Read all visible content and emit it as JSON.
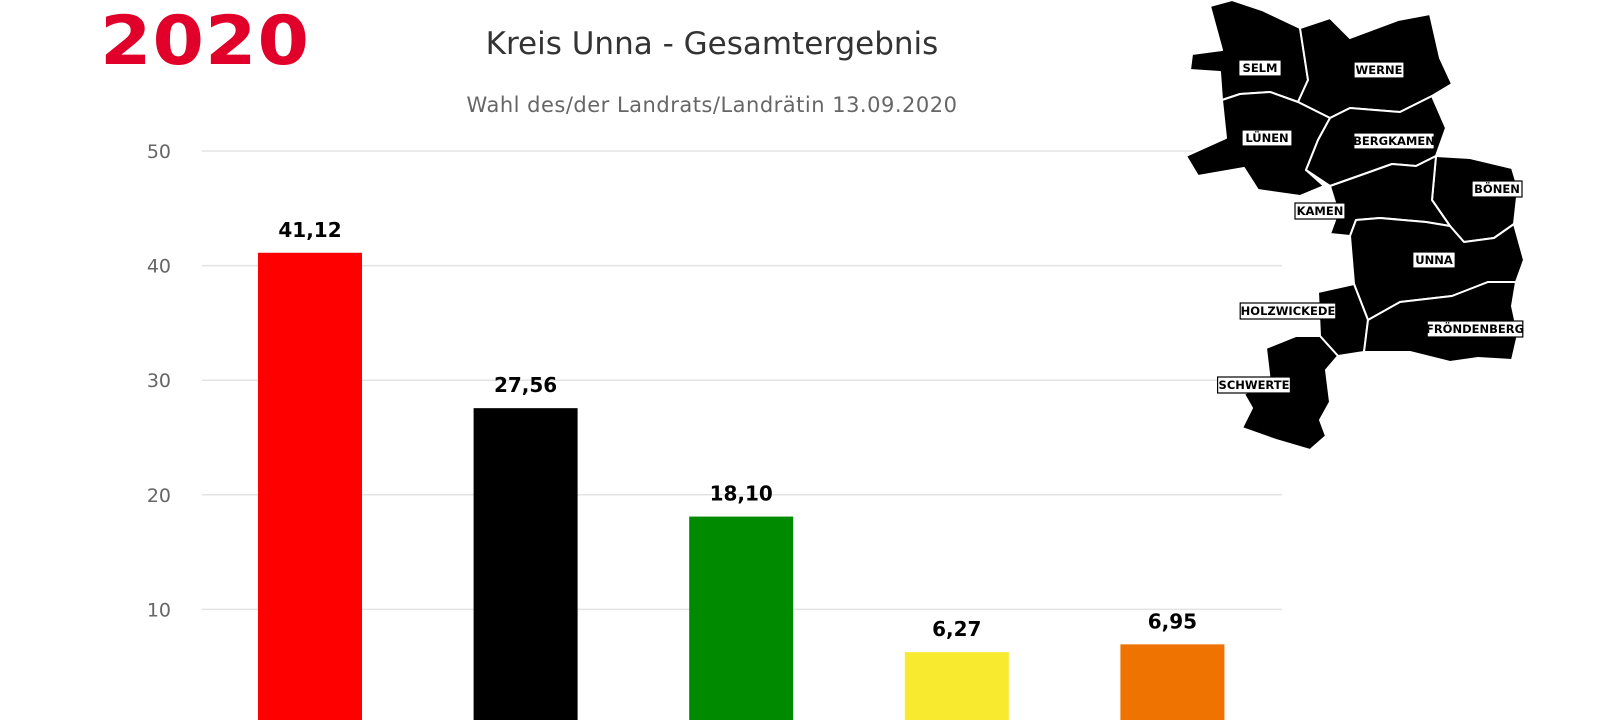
{
  "header": {
    "year": "2020",
    "title": "Kreis Unna - Gesamtergebnis",
    "subtitle": "Wahl des/der Landrats/Landrätin 13.09.2020"
  },
  "colors": {
    "brand": "#e0002a",
    "grid": "#e3e3e3",
    "map_fill": "#e0002a"
  },
  "map": {
    "labels": [
      "SELM",
      "WERNE",
      "LÜNEN",
      "BERGKAMEN",
      "BÖNEN",
      "KAMEN",
      "UNNA",
      "HOLZWICKEDE",
      "FRÖNDENBERG",
      "SCHWERTE"
    ]
  },
  "chart_data": {
    "type": "bar",
    "title": "Kreis Unna - Gesamtergebnis",
    "subtitle": "Wahl des/der Landrats/Landrätin 13.09.2020",
    "xlabel": "",
    "ylabel": "",
    "ylim": [
      0,
      50
    ],
    "yticks": [
      10,
      20,
      30,
      40,
      50
    ],
    "grid": true,
    "values": [
      41.12,
      27.56,
      18.1,
      6.27,
      6.95
    ],
    "value_labels": [
      "41,12",
      "27,56",
      "18,10",
      "6,27",
      "6,95"
    ],
    "bar_colors": [
      "#ff0000",
      "#000000",
      "#008a00",
      "#f7ea2f",
      "#ef7300"
    ]
  }
}
